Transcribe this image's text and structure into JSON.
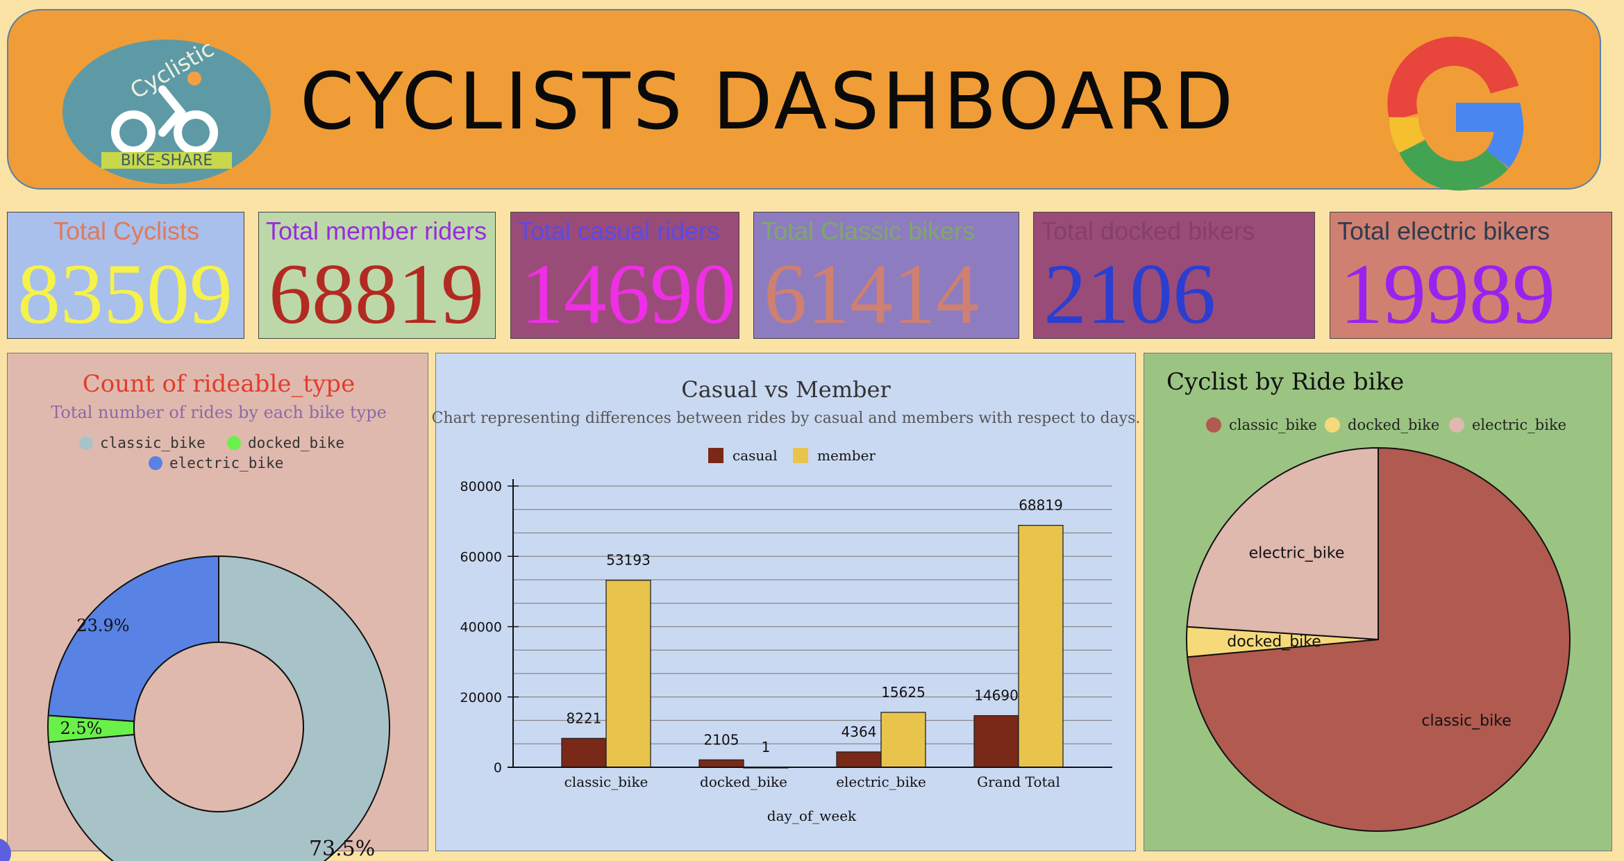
{
  "header": {
    "title": "CYCLISTS DASHBOARD",
    "logo_text_top": "Cyclistic",
    "logo_text_bottom": "BIKE-SHARE"
  },
  "stats": [
    {
      "label": "Total Cyclists",
      "value": "83509",
      "bg": "#a9bfec",
      "label_color": "#e0795a",
      "value_color": "#f5f24a"
    },
    {
      "label": "Total member riders",
      "value": "68819",
      "bg": "#bcd8a8",
      "label_color": "#9a2ae0",
      "value_color": "#b22a22"
    },
    {
      "label": "Total casual riders",
      "value": "14690",
      "bg": "#9a4c78",
      "label_color": "#5a4ae8",
      "value_color": "#ef2ee8"
    },
    {
      "label": "Total Classic bikers",
      "value": "61414",
      "bg": "#8e7cc0",
      "label_color": "#7ea86a",
      "value_color": "#d08070"
    },
    {
      "label": "Total docked bikers",
      "value": "2106",
      "bg": "#9a4c78",
      "label_color": "#85406a",
      "value_color": "#2a3ed0"
    },
    {
      "label": "Total electric bikers",
      "value": "19989",
      "bg": "#d08070",
      "label_color": "#2e3a4e",
      "value_color": "#9a22ee"
    }
  ],
  "chart_data": [
    {
      "type": "pie",
      "title": "Count of rideable_type",
      "subtitle": "Total number of rides by each bike type",
      "categories": [
        "classic_bike",
        "docked_bike",
        "electric_bike"
      ],
      "values": [
        73.5,
        2.5,
        23.9
      ],
      "value_labels": [
        "73.5%",
        "2.5%",
        "23.9%"
      ],
      "colors": [
        "#a8c3c8",
        "#6af04a",
        "#5882e4"
      ],
      "donut": true,
      "legend": "top"
    },
    {
      "type": "bar",
      "title": "Casual vs Member",
      "subtitle": "Chart representing differences between rides by casual and members with respect to days.",
      "categories": [
        "classic_bike",
        "docked_bike",
        "electric_bike",
        "Grand Total"
      ],
      "series": [
        {
          "name": "casual",
          "values": [
            8221,
            2105,
            4364,
            14690
          ],
          "color": "#7a2818"
        },
        {
          "name": "member",
          "values": [
            53193,
            1,
            15625,
            68819
          ],
          "color": "#e8c44c"
        }
      ],
      "xlabel": "day_of_week",
      "ylabel": "",
      "ylim": [
        0,
        80000
      ],
      "yticks": [
        "0",
        "20000",
        "40000",
        "60000",
        "80000"
      ],
      "grid": true,
      "legend": "top"
    },
    {
      "type": "pie",
      "title": "Cyclist by Ride bike",
      "categories": [
        "classic_bike",
        "docked_bike",
        "electric_bike"
      ],
      "values": [
        61414,
        2106,
        19989
      ],
      "colors": [
        "#b05a50",
        "#f6da7a",
        "#dfb8ae"
      ],
      "legend": "top"
    }
  ]
}
